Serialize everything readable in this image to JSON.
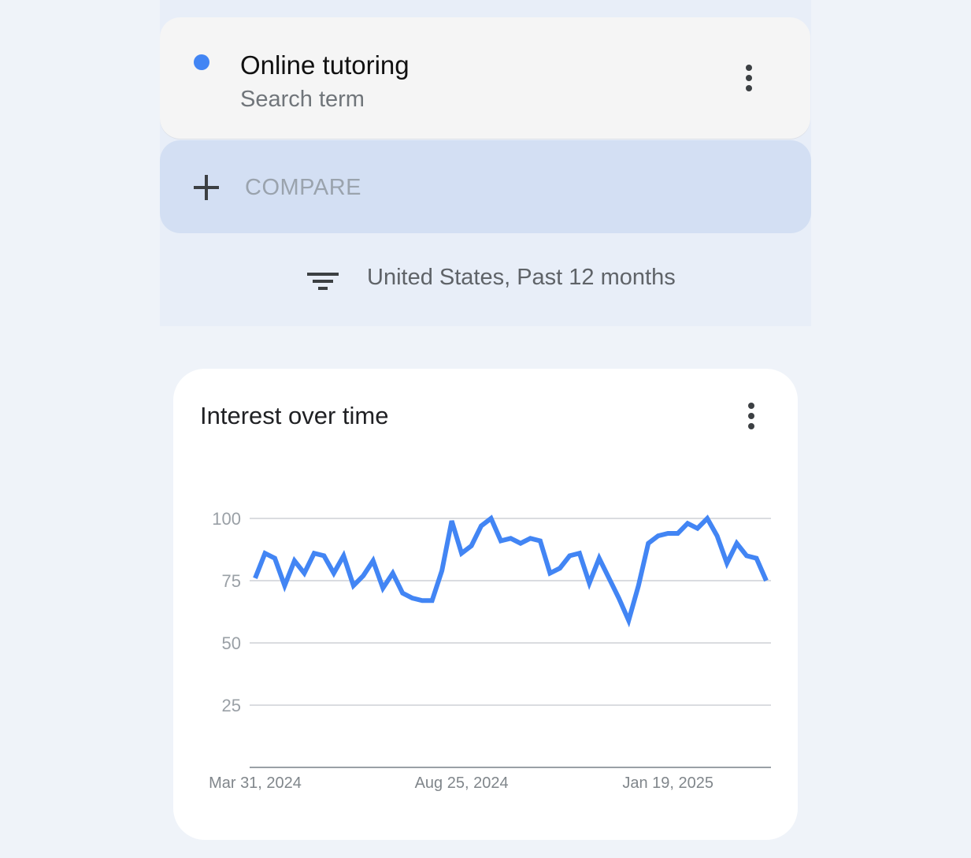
{
  "search_term": {
    "name": "Online tutoring",
    "type": "Search term",
    "color": "#4285f4",
    "menu_icon": "more-vert-icon"
  },
  "compare": {
    "label": "COMPARE",
    "icon": "plus-icon"
  },
  "filter": {
    "label": "United States, Past 12 months",
    "icon": "filter-icon"
  },
  "chart_card": {
    "title": "Interest over time",
    "menu_icon": "more-vert-icon"
  },
  "chart_data": {
    "type": "line",
    "title": "Interest over time",
    "ylim": [
      0,
      100
    ],
    "y_ticks": [
      "100",
      "75",
      "50",
      "25"
    ],
    "x_tick_labels": [
      "Mar 31, 2024",
      "Aug 25, 2024",
      "Jan 19, 2025"
    ],
    "grid": true,
    "x": [
      "2024-03-31",
      "2024-04-07",
      "2024-04-14",
      "2024-04-21",
      "2024-04-28",
      "2024-05-05",
      "2024-05-12",
      "2024-05-19",
      "2024-05-26",
      "2024-06-02",
      "2024-06-09",
      "2024-06-16",
      "2024-06-23",
      "2024-06-30",
      "2024-07-07",
      "2024-07-14",
      "2024-07-21",
      "2024-07-28",
      "2024-08-04",
      "2024-08-11",
      "2024-08-18",
      "2024-08-25",
      "2024-09-01",
      "2024-09-08",
      "2024-09-15",
      "2024-09-22",
      "2024-09-29",
      "2024-10-06",
      "2024-10-13",
      "2024-10-20",
      "2024-10-27",
      "2024-11-03",
      "2024-11-10",
      "2024-11-17",
      "2024-11-24",
      "2024-12-01",
      "2024-12-08",
      "2024-12-15",
      "2024-12-22",
      "2024-12-29",
      "2025-01-05",
      "2025-01-12",
      "2025-01-19",
      "2025-01-26",
      "2025-02-02",
      "2025-02-09",
      "2025-02-16",
      "2025-02-23",
      "2025-03-02",
      "2025-03-09",
      "2025-03-16",
      "2025-03-23",
      "2025-03-30"
    ],
    "series": [
      {
        "color": "#4285f4",
        "values": [
          76,
          86,
          84,
          73,
          83,
          78,
          86,
          85,
          78,
          85,
          73,
          77,
          83,
          72,
          78,
          70,
          68,
          67,
          67,
          79,
          99,
          86,
          89,
          97,
          100,
          91,
          92,
          90,
          92,
          91,
          78,
          80,
          85,
          86,
          74,
          84,
          76,
          68,
          59,
          73,
          90,
          93,
          94,
          94,
          98,
          96,
          100,
          93,
          82,
          90,
          85,
          84,
          75
        ]
      }
    ]
  }
}
